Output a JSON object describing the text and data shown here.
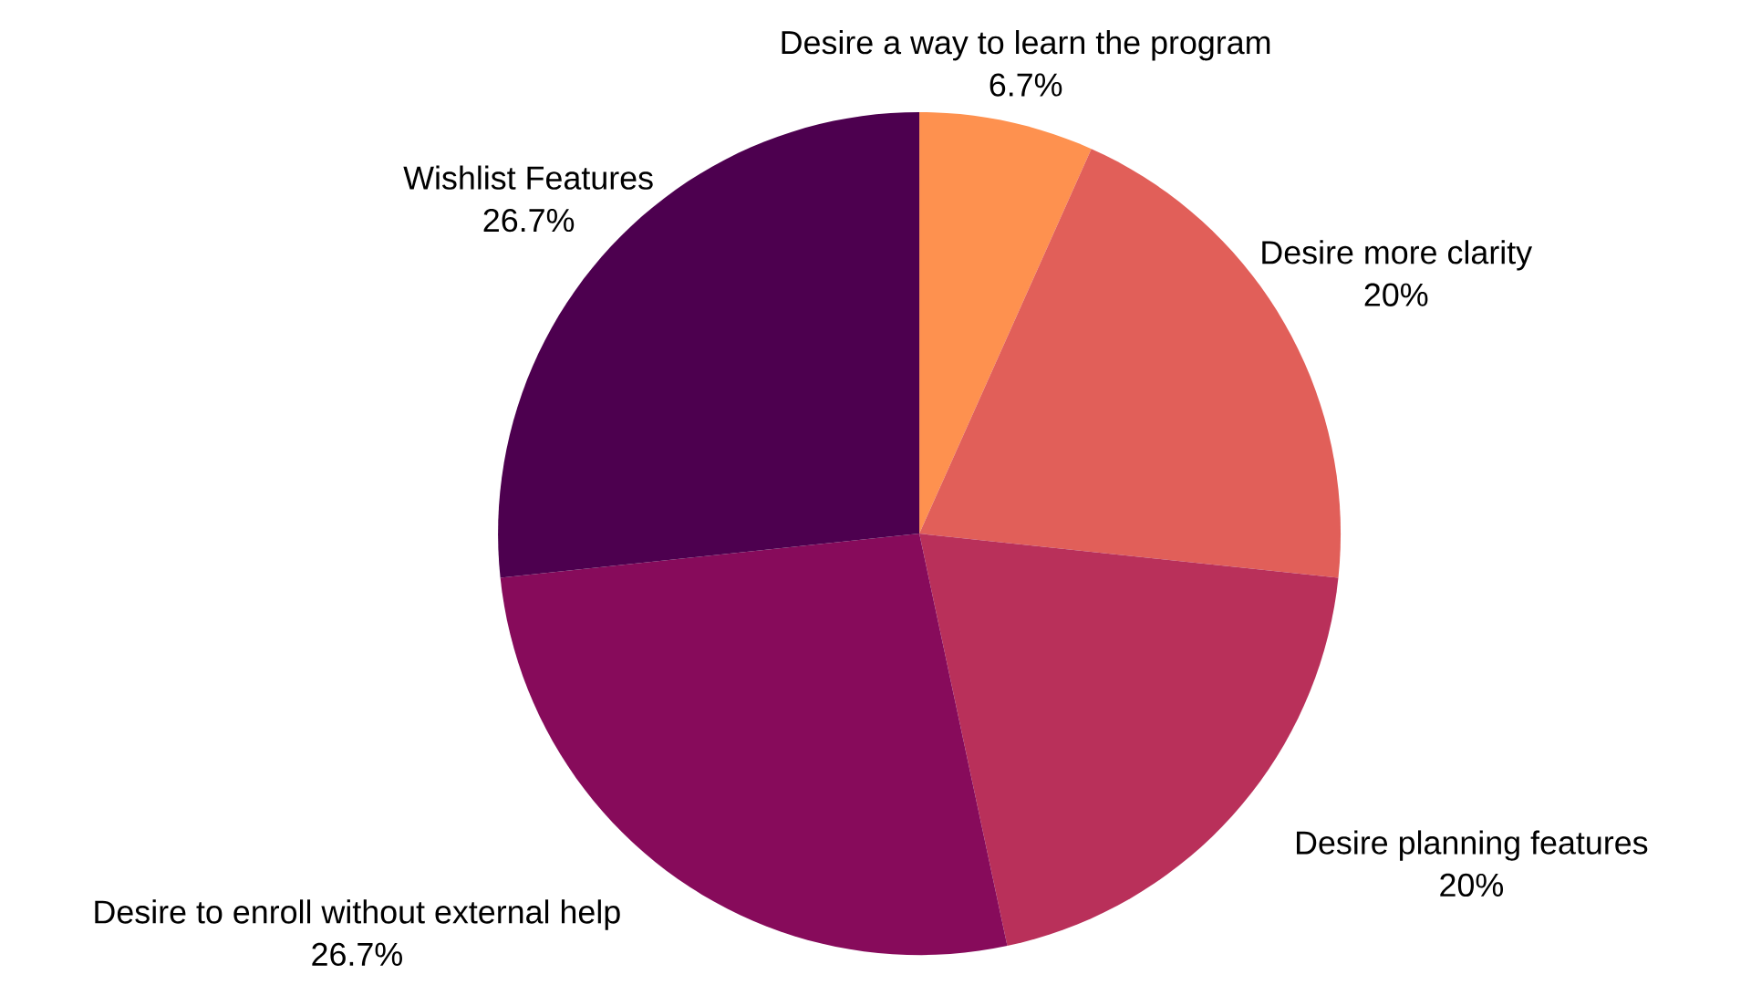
{
  "chart_data": {
    "type": "pie",
    "categories": [
      "Desire a way to learn the program",
      "Desire more clarity",
      "Desire planning features",
      "Desire to enroll without external help",
      "Wishlist Features"
    ],
    "values": [
      6.7,
      20,
      20,
      26.7,
      26.7
    ],
    "value_labels": [
      "6.7%",
      "20%",
      "20%",
      "26.7%",
      "26.7%"
    ],
    "colors": [
      "#fe914f",
      "#e15f59",
      "#b9305a",
      "#870b5b",
      "#4d004f"
    ]
  }
}
